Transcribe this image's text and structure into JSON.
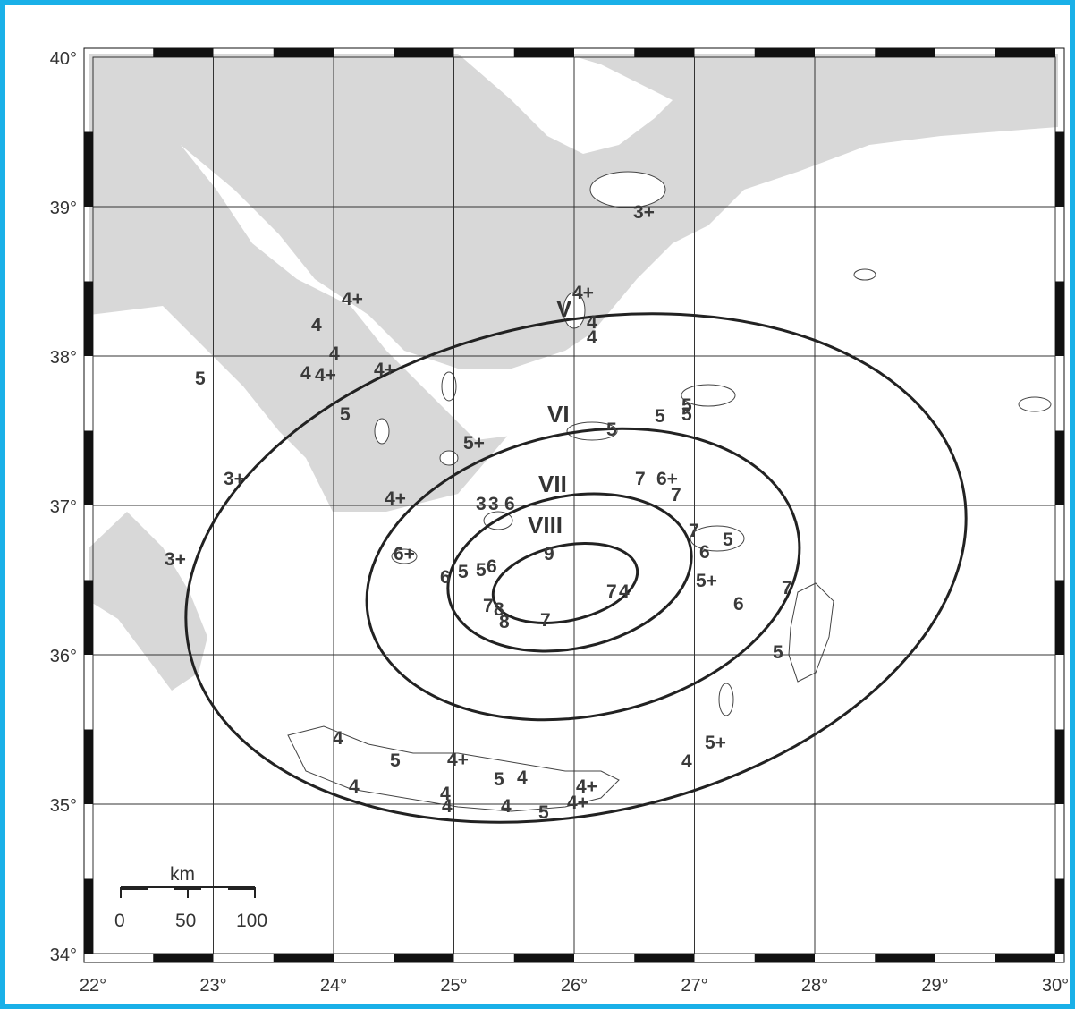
{
  "map": {
    "lon_ticks": [
      "22°",
      "23°",
      "24°",
      "25°",
      "26°",
      "27°",
      "28°",
      "29°",
      "30°"
    ],
    "lat_ticks": [
      "40°",
      "39°",
      "38°",
      "37°",
      "36°",
      "35°",
      "34°"
    ],
    "scale_bar": {
      "unit": "km",
      "labels": [
        "0",
        "50",
        "100"
      ]
    },
    "isoseismals": [
      {
        "label": "V"
      },
      {
        "label": "VI"
      },
      {
        "label": "VII"
      },
      {
        "label": "VIII"
      }
    ],
    "intensity_labels": [
      "3+",
      "4+",
      "4",
      "4",
      "4",
      "4",
      "5",
      "4",
      "4+",
      "4+",
      "4",
      "5",
      "3+",
      "5",
      "4+",
      "5+",
      "5",
      "5",
      "5",
      "7",
      "6+",
      "7",
      "4+",
      "3",
      "3",
      "6",
      "7",
      "6+",
      "5",
      "5",
      "6",
      "7",
      "5",
      "6",
      "6",
      "7",
      "7",
      "4",
      "7",
      "5+",
      "6",
      "7",
      "5",
      "3+",
      "4",
      "5",
      "4",
      "4+",
      "4",
      "4",
      "4",
      "5+",
      "4",
      "4",
      "5",
      "4+",
      "5",
      "4+",
      "4",
      "9",
      "8",
      "8",
      "7",
      "5"
    ],
    "colors": {
      "land": "#d8d8d8",
      "sea": "#ffffff",
      "border": "#1ab0e8",
      "lines": "#222222"
    }
  }
}
